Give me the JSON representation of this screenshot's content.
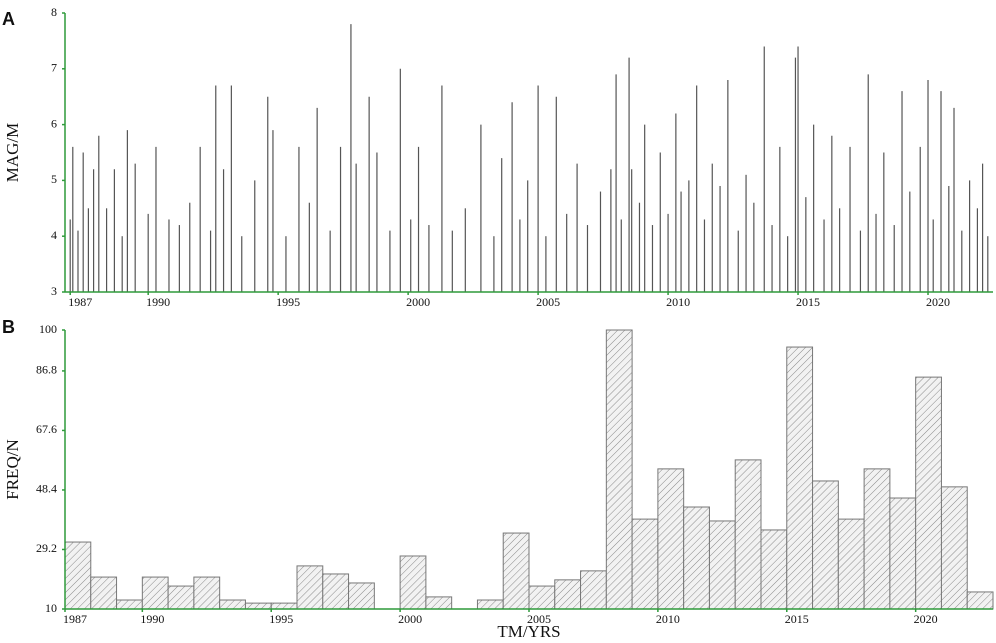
{
  "chart_data": [
    {
      "type": "spike",
      "panel_label": "A",
      "y_label": "MAG/M",
      "color": "#555555",
      "xlim": [
        1986.8,
        2022.5
      ],
      "ylim": [
        3,
        8
      ],
      "yticks": [
        3,
        4,
        5,
        6,
        7,
        8
      ],
      "xticks": [
        1987,
        1990,
        1995,
        2000,
        2005,
        2010,
        2015,
        2020
      ],
      "x": [
        1987.0,
        1987.1,
        1987.3,
        1987.5,
        1987.7,
        1987.9,
        1988.1,
        1988.4,
        1988.7,
        1989.0,
        1989.2,
        1989.5,
        1990.0,
        1990.3,
        1990.8,
        1991.2,
        1991.6,
        1992.0,
        1992.4,
        1992.6,
        1992.9,
        1993.2,
        1993.6,
        1994.1,
        1994.6,
        1994.8,
        1995.3,
        1995.8,
        1996.2,
        1996.5,
        1997.0,
        1997.4,
        1997.8,
        1998.0,
        1998.5,
        1998.8,
        1999.3,
        1999.7,
        2000.1,
        2000.4,
        2000.8,
        2001.3,
        2001.7,
        2002.2,
        2002.8,
        2003.3,
        2003.6,
        2004.0,
        2004.3,
        2004.6,
        2005.0,
        2005.3,
        2005.7,
        2006.1,
        2006.5,
        2006.9,
        2007.4,
        2007.8,
        2008.0,
        2008.2,
        2008.5,
        2008.6,
        2008.9,
        2009.1,
        2009.4,
        2009.7,
        2010.0,
        2010.3,
        2010.5,
        2010.8,
        2011.1,
        2011.4,
        2011.7,
        2012.0,
        2012.3,
        2012.7,
        2013.0,
        2013.3,
        2013.7,
        2014.0,
        2014.3,
        2014.6,
        2014.9,
        2015.0,
        2015.3,
        2015.6,
        2016.0,
        2016.3,
        2016.6,
        2017.0,
        2017.4,
        2017.7,
        2018.0,
        2018.3,
        2018.7,
        2019.0,
        2019.3,
        2019.7,
        2020.0,
        2020.2,
        2020.5,
        2020.8,
        2021.0,
        2021.3,
        2021.6,
        2021.9,
        2022.1,
        2022.3
      ],
      "values": [
        4.3,
        5.6,
        4.1,
        5.5,
        4.5,
        5.2,
        5.8,
        4.5,
        5.2,
        4.0,
        5.9,
        5.3,
        4.4,
        5.6,
        4.3,
        4.2,
        4.6,
        5.6,
        4.1,
        6.7,
        5.2,
        6.7,
        4.0,
        5.0,
        6.5,
        5.9,
        4.0,
        5.6,
        4.6,
        6.3,
        4.1,
        5.6,
        7.8,
        5.3,
        6.5,
        5.5,
        4.1,
        7.0,
        4.3,
        5.6,
        4.2,
        6.7,
        4.1,
        4.5,
        6.0,
        4.0,
        5.4,
        6.4,
        4.3,
        5.0,
        6.7,
        4.0,
        6.5,
        4.4,
        5.3,
        4.2,
        4.8,
        5.2,
        6.9,
        4.3,
        7.2,
        5.2,
        4.6,
        6.0,
        4.2,
        5.5,
        4.4,
        6.2,
        4.8,
        5.0,
        6.7,
        4.3,
        5.3,
        4.9,
        6.8,
        4.1,
        5.1,
        4.6,
        7.4,
        4.2,
        5.6,
        4.0,
        7.2,
        7.4,
        4.7,
        6.0,
        4.3,
        5.8,
        4.5,
        5.6,
        4.1,
        6.9,
        4.4,
        5.5,
        4.2,
        6.6,
        4.8,
        5.6,
        6.8,
        4.3,
        6.6,
        4.9,
        6.3,
        4.1,
        5.0,
        4.5,
        5.3,
        4.0
      ]
    },
    {
      "type": "histogram",
      "panel_label": "B",
      "y_label": "FREQ/N",
      "x_label": "TM/YRS",
      "color": "#777777",
      "xlim": [
        1987,
        2023
      ],
      "ylim": [
        10,
        100
      ],
      "yticks": [
        10,
        29.2,
        48.4,
        67.6,
        86.8,
        100
      ],
      "xticks": [
        1987,
        1990,
        1995,
        2000,
        2005,
        2010,
        2015,
        2020
      ],
      "bins": [
        1987,
        1988,
        1989,
        1990,
        1991,
        1992,
        1993,
        1994,
        1995,
        1996,
        1997,
        1998,
        1999,
        2000,
        2001,
        2002,
        2003,
        2004,
        2005,
        2006,
        2007,
        2008,
        2009,
        2010,
        2011,
        2012,
        2013,
        2014,
        2015,
        2016,
        2017,
        2018,
        2019,
        2020,
        2021,
        2022,
        2023
      ],
      "values": [
        31.6,
        20.3,
        12.9,
        20.3,
        17.4,
        20.3,
        12.9,
        11.9,
        11.9,
        23.9,
        21.3,
        18.4,
        null,
        27.1,
        13.9,
        null,
        12.9,
        34.5,
        17.4,
        19.4,
        22.3,
        100,
        39.0,
        55.2,
        42.9,
        38.4,
        58.1,
        35.5,
        94.5,
        51.3,
        39.0,
        55.2,
        45.8,
        84.8,
        49.4,
        15.5
      ]
    }
  ]
}
